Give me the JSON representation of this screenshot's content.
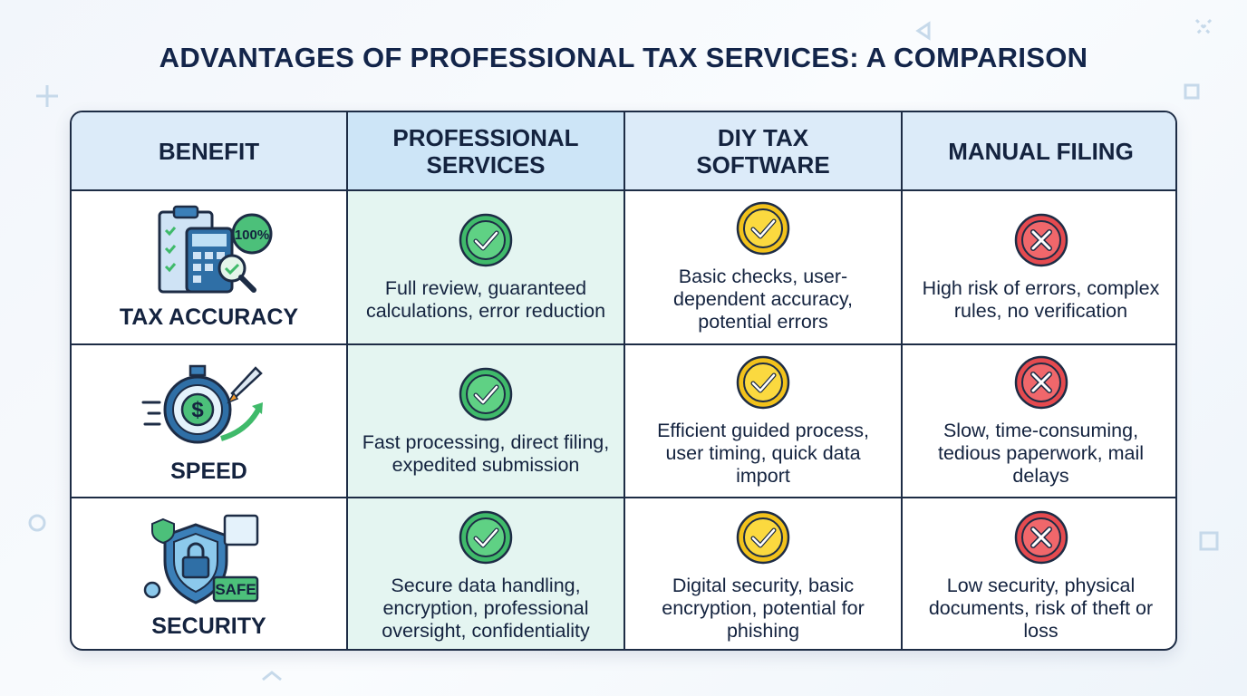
{
  "title": "ADVANTAGES OF PROFESSIONAL TAX SERVICES: A COMPARISON",
  "table": {
    "header": [
      "BENEFIT",
      "PROFESSIONAL SERVICES",
      "DIY TAX SOFTWARE",
      "MANUAL FILING"
    ],
    "rows": [
      {
        "benefit": "TAX ACCURACY",
        "icon_text": "100%",
        "cells": [
          "Full review, guaranteed calculations, error reduction",
          "Basic checks, user-dependent accuracy, potential errors",
          "High risk of errors, complex rules, no verification"
        ]
      },
      {
        "benefit": "SPEED",
        "icon_text": "$",
        "cells": [
          "Fast processing, direct filing, expedited submission",
          "Efficient guided process, user timing, quick data import",
          "Slow, time-consuming, tedious paperwork, mail delays"
        ]
      },
      {
        "benefit": "SECURITY",
        "icon_text": "SAFE",
        "cells": [
          "Secure data handling, encryption, professional oversight, confidentiality",
          "Digital security, basic encryption, potential for phishing",
          "Low security, physical documents, risk of theft or loss"
        ]
      }
    ]
  }
}
